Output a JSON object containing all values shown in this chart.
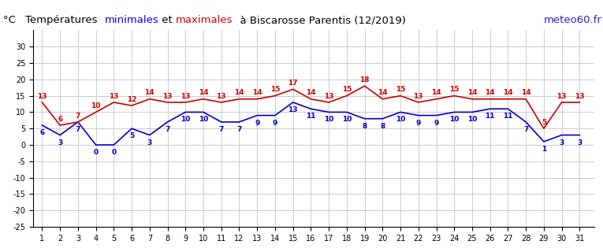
{
  "days": [
    1,
    2,
    3,
    4,
    5,
    6,
    7,
    8,
    9,
    10,
    11,
    12,
    13,
    14,
    15,
    16,
    17,
    18,
    19,
    20,
    21,
    22,
    23,
    24,
    25,
    26,
    27,
    28,
    29,
    30,
    31
  ],
  "min_temps": [
    6,
    3,
    7,
    0,
    0,
    5,
    3,
    7,
    10,
    10,
    7,
    7,
    9,
    9,
    13,
    11,
    10,
    10,
    8,
    8,
    10,
    9,
    9,
    10,
    10,
    11,
    11,
    7,
    1,
    3,
    3
  ],
  "max_temps": [
    13,
    6,
    7,
    10,
    13,
    12,
    14,
    13,
    13,
    14,
    13,
    14,
    14,
    15,
    17,
    14,
    13,
    15,
    18,
    14,
    15,
    13,
    14,
    15,
    14,
    14,
    14,
    14,
    5,
    13,
    13
  ],
  "title_parts": [
    {
      "text": "°C   ",
      "color": "black"
    },
    {
      "text": "Températures  ",
      "color": "black"
    },
    {
      "text": "minimales",
      "color": "#0000ff"
    },
    {
      "text": " et ",
      "color": "black"
    },
    {
      "text": "maximales",
      "color": "#cc0000"
    },
    {
      "text": "  à Biscarosse Parentis (12/2019)",
      "color": "black"
    }
  ],
  "watermark": "meteo60.fr",
  "min_color": "#0000cc",
  "max_color": "#cc0000",
  "watermark_color": "#2222cc",
  "ylim_low": -25,
  "ylim_high": 35,
  "yticks": [
    -25,
    -20,
    -15,
    -10,
    -5,
    0,
    5,
    10,
    15,
    20,
    25,
    30
  ],
  "bg_color": "#ffffff",
  "grid_color": "#cccccc",
  "line_width": 1.2,
  "font_size_data": 6.5,
  "font_size_tick": 7,
  "font_size_title": 9.5
}
